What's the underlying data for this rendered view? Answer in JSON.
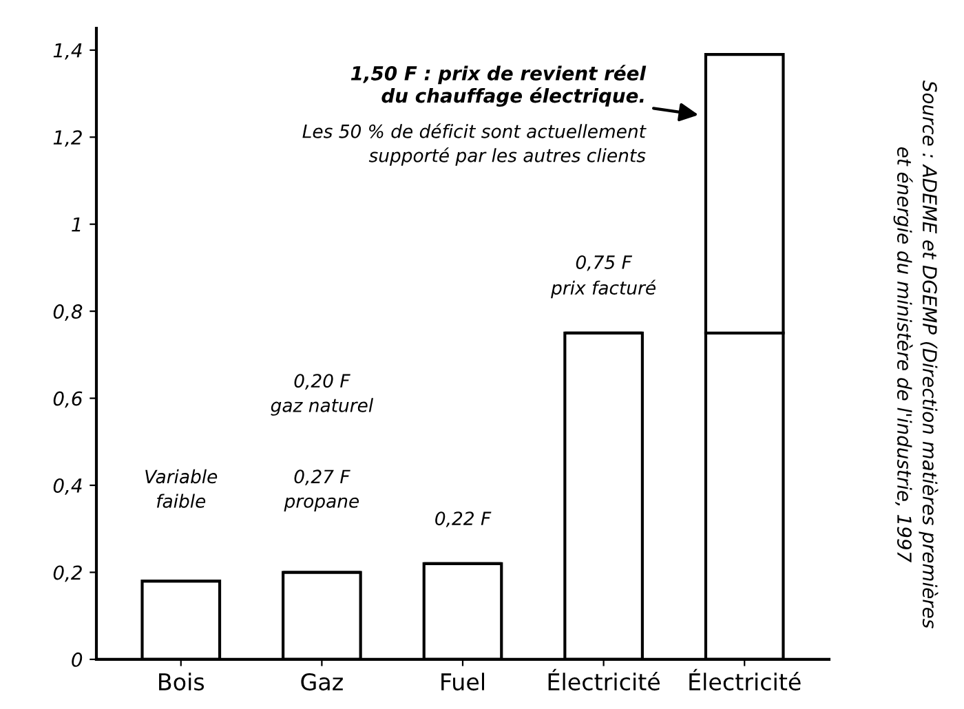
{
  "chart_data": {
    "type": "bar",
    "stacked": true,
    "categories": [
      "Bois",
      "Gaz",
      "Fuel",
      "Électricité",
      "Électricité"
    ],
    "series": [
      {
        "color": "#ffffff",
        "values": [
          0.18,
          0.2,
          0.22,
          0.75,
          0.75
        ]
      },
      {
        "color": "#ffffff",
        "values": [
          null,
          null,
          null,
          null,
          0.64
        ]
      }
    ],
    "ylim": [
      0,
      1.45
    ],
    "yticks": [
      {
        "value": 0,
        "label": "0"
      },
      {
        "value": 0.2,
        "label": "0,2"
      },
      {
        "value": 0.4,
        "label": "0,4"
      },
      {
        "value": 0.6,
        "label": "0,6"
      },
      {
        "value": 0.8,
        "label": "0,8"
      },
      {
        "value": 1,
        "label": "1"
      },
      {
        "value": 1.2,
        "label": "1,2"
      },
      {
        "value": 1.4,
        "label": "1,4"
      }
    ],
    "grid": false,
    "legend": false,
    "annotations": [
      "Variable\nfaible",
      "0,20 F\ngaz naturel",
      "0,27 F\npropane",
      "0,22 F",
      "0,75 F\nprix facturé",
      "1,50 F : prix de revient réel\ndu chauffage électrique.",
      "Les 50 % de déficit sont actuellement\nsupporté par les autres clients",
      "Source : ADEME et DGEMP (Direction matières premières\net énergie du ministère de l'industrie, 1997"
    ]
  }
}
